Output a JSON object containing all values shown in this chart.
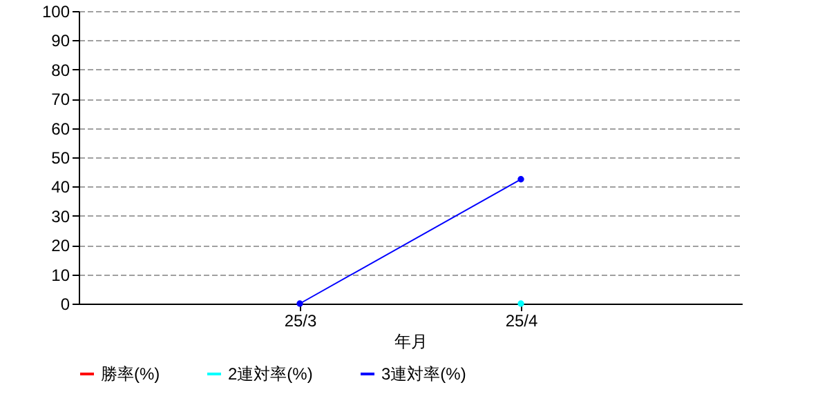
{
  "chart_data": {
    "type": "line",
    "xlabel": "年月",
    "categories": [
      "25/3",
      "25/4"
    ],
    "series": [
      {
        "name": "勝率(%)",
        "color": "#ff0000",
        "values": [
          null,
          null
        ]
      },
      {
        "name": "2連対率(%)",
        "color": "#00ffff",
        "values": [
          null,
          0
        ]
      },
      {
        "name": "3連対率(%)",
        "color": "#0000ff",
        "values": [
          0,
          42.5
        ]
      }
    ],
    "ylim": [
      0,
      100
    ],
    "yticks": [
      0,
      10,
      20,
      30,
      40,
      50,
      60,
      70,
      80,
      90,
      100
    ],
    "grid": "y",
    "legend": "bottom",
    "marker": "circle",
    "line_style": "solid"
  }
}
